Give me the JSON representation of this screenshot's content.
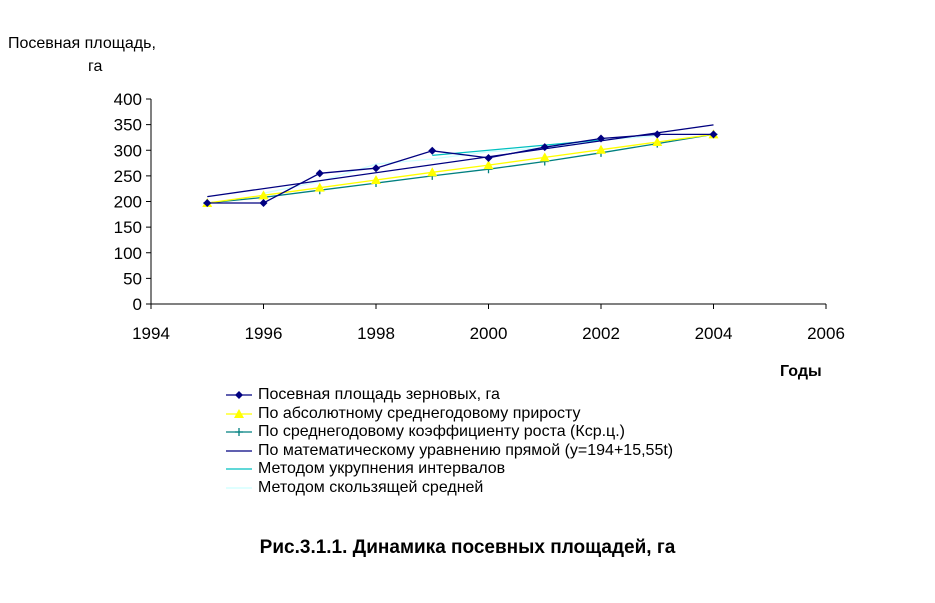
{
  "chart_data": {
    "type": "line",
    "ylabel_lines": [
      "Посевная площадь,",
      "га"
    ],
    "xlabel": "Годы",
    "xlim": [
      1994,
      2006
    ],
    "ylim": [
      0,
      400
    ],
    "x_ticks": [
      1994,
      1996,
      1998,
      2000,
      2002,
      2004,
      2006
    ],
    "y_ticks": [
      0,
      50,
      100,
      150,
      200,
      250,
      300,
      350,
      400
    ],
    "grid": false,
    "legend_position": "bottom",
    "series": [
      {
        "name": "Посевная площадь зерновых, га",
        "color": "#000080",
        "marker": "diamond",
        "x": [
          1995,
          1996,
          1997,
          1998,
          1999,
          2000,
          2001,
          2002,
          2003,
          2004
        ],
        "y": [
          197,
          197,
          255,
          265,
          299,
          285,
          306,
          323,
          331,
          331
        ]
      },
      {
        "name": "По абсолютному среднегодовому приросту",
        "color": "#ffff00",
        "marker": "triangle",
        "x": [
          1995,
          1996,
          1997,
          1998,
          1999,
          2000,
          2001,
          2002,
          2003,
          2004
        ],
        "y": [
          197,
          212,
          227,
          242,
          257,
          271,
          286,
          301,
          316,
          331
        ]
      },
      {
        "name": "По среднегодовому коэффициенту роста (Кср.ц.)",
        "color": "#008080",
        "marker": "plus",
        "x": [
          1995,
          1996,
          1997,
          1998,
          1999,
          2000,
          2001,
          2002,
          2003,
          2004
        ],
        "y": [
          197,
          208,
          222,
          236,
          250,
          263,
          278,
          295,
          313,
          331
        ]
      },
      {
        "name": "По математическому уравнению прямой (y=194+15,55t)",
        "color": "#000080",
        "marker": "none",
        "x": [
          1995,
          2004
        ],
        "y": [
          209.55,
          349.5
        ]
      },
      {
        "name": "Методом укрупнения интервалов",
        "color": "#00c0c0",
        "marker": "none",
        "x": [
          1999,
          2002
        ],
        "y": [
          290,
          320
        ]
      },
      {
        "name": "Методом скользящей средней",
        "color": "#ccffff",
        "marker": "none",
        "x": [
          1996,
          1997,
          1998,
          1999,
          2000,
          2001,
          2002,
          2003
        ],
        "y": [
          216,
          239,
          273,
          283,
          297,
          305,
          320,
          328
        ]
      }
    ]
  },
  "caption": "Рис.3.1.1.  Динамика посевных площадей, га"
}
